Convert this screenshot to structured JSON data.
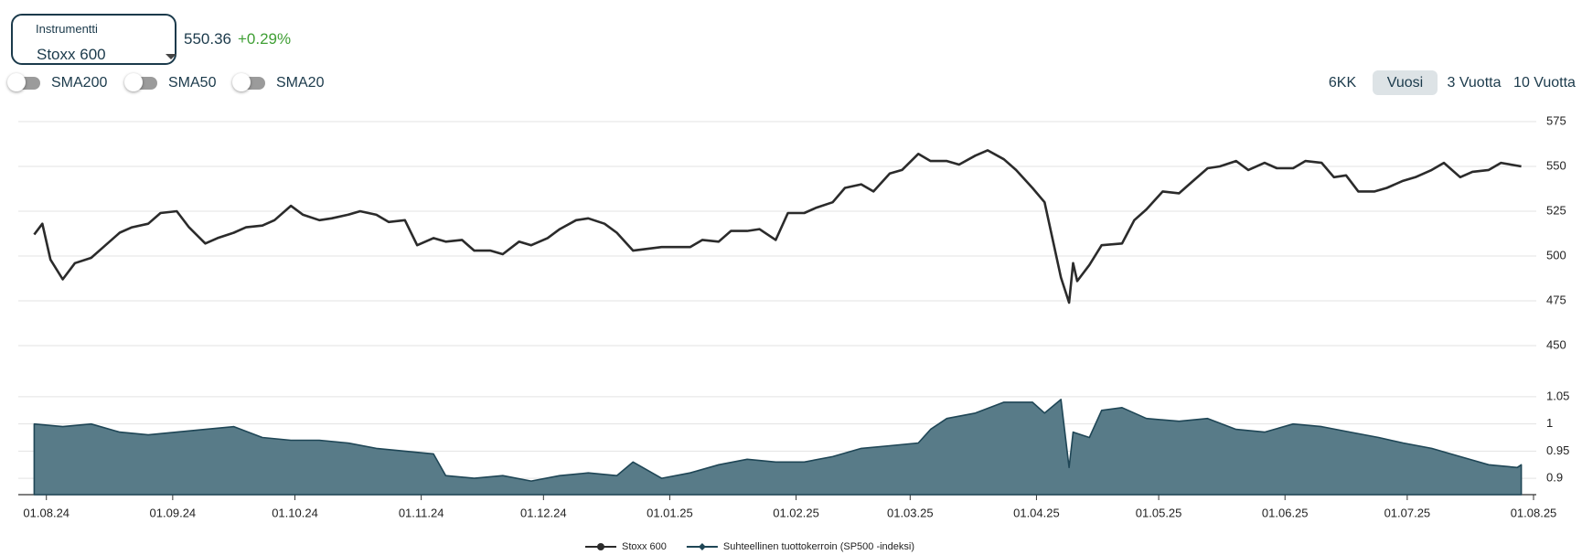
{
  "ui": {
    "instrument_label": "Instrumentti",
    "instrument": "Stoxx 600",
    "price": "550.36",
    "change": "+0.29%",
    "toggles": [
      "SMA200",
      "SMA50",
      "SMA20"
    ],
    "ranges": [
      "6KK",
      "Vuosi",
      "3 Vuotta",
      "10 Vuotta"
    ],
    "selected_range": 1
  },
  "chart_data": [
    {
      "type": "line",
      "x": [
        "2024-07-29",
        "2024-07-31",
        "2024-08-02",
        "2024-08-05",
        "2024-08-08",
        "2024-08-12",
        "2024-08-15",
        "2024-08-19",
        "2024-08-22",
        "2024-08-26",
        "2024-08-29",
        "2024-09-02",
        "2024-09-05",
        "2024-09-09",
        "2024-09-12",
        "2024-09-16",
        "2024-09-19",
        "2024-09-23",
        "2024-09-26",
        "2024-09-30",
        "2024-10-03",
        "2024-10-07",
        "2024-10-10",
        "2024-10-14",
        "2024-10-17",
        "2024-10-21",
        "2024-10-24",
        "2024-10-28",
        "2024-10-31",
        "2024-11-04",
        "2024-11-07",
        "2024-11-11",
        "2024-11-14",
        "2024-11-18",
        "2024-11-21",
        "2024-11-25",
        "2024-11-28",
        "2024-12-02",
        "2024-12-05",
        "2024-12-09",
        "2024-12-12",
        "2024-12-16",
        "2024-12-19",
        "2024-12-23",
        "2024-12-30",
        "2025-01-06",
        "2025-01-09",
        "2025-01-13",
        "2025-01-16",
        "2025-01-20",
        "2025-01-23",
        "2025-01-27",
        "2025-01-30",
        "2025-02-03",
        "2025-02-06",
        "2025-02-10",
        "2025-02-13",
        "2025-02-17",
        "2025-02-20",
        "2025-02-24",
        "2025-02-27",
        "2025-03-03",
        "2025-03-06",
        "2025-03-10",
        "2025-03-13",
        "2025-03-17",
        "2025-03-20",
        "2025-03-24",
        "2025-03-27",
        "2025-03-31",
        "2025-04-03",
        "2025-04-07",
        "2025-04-09",
        "2025-04-10",
        "2025-04-11",
        "2025-04-14",
        "2025-04-17",
        "2025-04-22",
        "2025-04-25",
        "2025-04-28",
        "2025-05-02",
        "2025-05-06",
        "2025-05-09",
        "2025-05-13",
        "2025-05-16",
        "2025-05-20",
        "2025-05-23",
        "2025-05-27",
        "2025-05-30",
        "2025-06-03",
        "2025-06-06",
        "2025-06-10",
        "2025-06-13",
        "2025-06-16",
        "2025-06-19",
        "2025-06-23",
        "2025-06-26",
        "2025-06-30",
        "2025-07-03",
        "2025-07-07",
        "2025-07-10",
        "2025-07-14",
        "2025-07-17",
        "2025-07-21",
        "2025-07-24",
        "2025-07-29"
      ],
      "series": [
        {
          "name": "Stoxx 600",
          "color": "#2b2b2b",
          "values": [
            512,
            518,
            498,
            487,
            496,
            499,
            505,
            513,
            516,
            518,
            524,
            525,
            516,
            507,
            510,
            513,
            516,
            517,
            520,
            528,
            523,
            520,
            521,
            523,
            525,
            523,
            519,
            520,
            506,
            510,
            508,
            509,
            503,
            503,
            501,
            508,
            506,
            510,
            515,
            520,
            521,
            518,
            513,
            503,
            505,
            505,
            509,
            508,
            514,
            514,
            515,
            509,
            524,
            524,
            527,
            530,
            538,
            540,
            536,
            546,
            548,
            557,
            553,
            553,
            551,
            556,
            559,
            554,
            548,
            538,
            530,
            488,
            474,
            496,
            486,
            495,
            506,
            507,
            520,
            526,
            536,
            535,
            541,
            549,
            550,
            553,
            548,
            552,
            549,
            549,
            553,
            552,
            544,
            545,
            536,
            536,
            538,
            542,
            544,
            548,
            552,
            544,
            547,
            548,
            552,
            550
          ]
        }
      ],
      "xlim": [
        "2024-07-26",
        "2025-08-01"
      ],
      "ylim": [
        450,
        575
      ],
      "yticks": [
        450,
        475,
        500,
        525,
        550,
        575
      ],
      "grid": true
    },
    {
      "type": "area",
      "x": [
        "2024-07-29",
        "2024-08-05",
        "2024-08-12",
        "2024-08-19",
        "2024-08-26",
        "2024-09-02",
        "2024-09-09",
        "2024-09-16",
        "2024-09-23",
        "2024-09-30",
        "2024-10-07",
        "2024-10-14",
        "2024-10-21",
        "2024-10-28",
        "2024-11-04",
        "2024-11-07",
        "2024-11-14",
        "2024-11-21",
        "2024-11-28",
        "2024-12-05",
        "2024-12-12",
        "2024-12-19",
        "2024-12-23",
        "2024-12-30",
        "2025-01-06",
        "2025-01-13",
        "2025-01-20",
        "2025-01-27",
        "2025-02-03",
        "2025-02-10",
        "2025-02-17",
        "2025-02-24",
        "2025-03-03",
        "2025-03-06",
        "2025-03-10",
        "2025-03-17",
        "2025-03-24",
        "2025-03-31",
        "2025-04-03",
        "2025-04-07",
        "2025-04-09",
        "2025-04-10",
        "2025-04-14",
        "2025-04-17",
        "2025-04-22",
        "2025-04-28",
        "2025-05-06",
        "2025-05-13",
        "2025-05-20",
        "2025-05-27",
        "2025-06-03",
        "2025-06-10",
        "2025-06-17",
        "2025-06-24",
        "2025-06-30",
        "2025-07-07",
        "2025-07-14",
        "2025-07-21",
        "2025-07-28",
        "2025-07-29"
      ],
      "series": [
        {
          "name": "Suhteellinen tuottokerroin (SP500 -indeksi)",
          "color": "#587b88",
          "values": [
            1.0,
            0.995,
            1.0,
            0.985,
            0.98,
            0.985,
            0.99,
            0.995,
            0.975,
            0.97,
            0.97,
            0.965,
            0.955,
            0.95,
            0.945,
            0.905,
            0.9,
            0.905,
            0.895,
            0.905,
            0.91,
            0.905,
            0.93,
            0.9,
            0.91,
            0.925,
            0.935,
            0.93,
            0.93,
            0.94,
            0.955,
            0.96,
            0.965,
            0.99,
            1.01,
            1.02,
            1.04,
            1.04,
            1.02,
            1.045,
            0.92,
            0.985,
            0.975,
            1.025,
            1.03,
            1.01,
            1.005,
            1.01,
            0.99,
            0.985,
            1.0,
            0.995,
            0.985,
            0.975,
            0.965,
            0.955,
            0.94,
            0.925,
            0.92,
            0.925
          ]
        }
      ],
      "xlim": [
        "2024-07-26",
        "2025-08-01"
      ],
      "ylim": [
        0.87,
        1.07
      ],
      "yticks": [
        0.9,
        0.95,
        1,
        1.05
      ],
      "grid": true,
      "xticks": [
        {
          "value": "2024-08-01",
          "label": "01.08.24"
        },
        {
          "value": "2024-09-01",
          "label": "01.09.24"
        },
        {
          "value": "2024-10-01",
          "label": "01.10.24"
        },
        {
          "value": "2024-11-01",
          "label": "01.11.24"
        },
        {
          "value": "2024-12-01",
          "label": "01.12.24"
        },
        {
          "value": "2025-01-01",
          "label": "01.01.25"
        },
        {
          "value": "2025-02-01",
          "label": "01.02.25"
        },
        {
          "value": "2025-03-01",
          "label": "01.03.25"
        },
        {
          "value": "2025-04-01",
          "label": "01.04.25"
        },
        {
          "value": "2025-05-01",
          "label": "01.05.25"
        },
        {
          "value": "2025-06-01",
          "label": "01.06.25"
        },
        {
          "value": "2025-07-01",
          "label": "01.07.25"
        },
        {
          "value": "2025-08-01",
          "label": "01.08.25"
        }
      ]
    }
  ]
}
